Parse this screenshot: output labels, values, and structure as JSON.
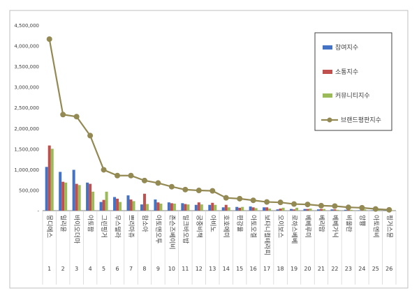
{
  "chart_data": {
    "type": "bar",
    "categories": [
      "몽디에스",
      "일리윤",
      "바이오더마",
      "아토팜",
      "그린핑거",
      "무스텔라",
      "쁘리마쥬",
      "함소아",
      "아토앤오투",
      "존슨즈베이비",
      "밀크바오밥",
      "궁중비책",
      "아비노",
      "호호에미",
      "편강율",
      "아토오겔",
      "보타니컬테라피",
      "오이보스",
      "로하스베베",
      "베베루미",
      "베리맘",
      "베베가닉",
      "비올란",
      "앙쁑",
      "아토엔비",
      "핑거스뮨"
    ],
    "x_numbers": [
      "1",
      "2",
      "3",
      "4",
      "5",
      "6",
      "7",
      "8",
      "9",
      "10",
      "11",
      "12",
      "13",
      "14",
      "15",
      "16",
      "17",
      "18",
      "19",
      "20",
      "21",
      "22",
      "23",
      "24",
      "25",
      "26"
    ],
    "yticks": [
      "-",
      "500,000",
      "1,000,000",
      "1,500,000",
      "2,000,000",
      "2,500,000",
      "3,000,000",
      "3,500,000",
      "4,000,000",
      "4,500,000"
    ],
    "ylim": [
      0,
      4500000
    ],
    "series": [
      {
        "name": "참여지수",
        "type": "bar",
        "color": "#4472C4",
        "values": [
          1060000,
          940000,
          990000,
          680000,
          210000,
          330000,
          370000,
          150000,
          270000,
          200000,
          180000,
          140000,
          140000,
          80000,
          90000,
          100000,
          80000,
          30000,
          40000,
          40000,
          30000,
          30000,
          20000,
          10000,
          10000,
          10000
        ]
      },
      {
        "name": "소통지수",
        "type": "bar",
        "color": "#C0504D",
        "values": [
          1580000,
          700000,
          650000,
          650000,
          260000,
          290000,
          270000,
          410000,
          200000,
          180000,
          160000,
          200000,
          190000,
          140000,
          70000,
          80000,
          80000,
          50000,
          30000,
          40000,
          40000,
          30000,
          20000,
          20000,
          10000,
          10000
        ]
      },
      {
        "name": "커뮤니티지수",
        "type": "bar",
        "color": "#9BBB59",
        "values": [
          1500000,
          680000,
          620000,
          460000,
          460000,
          210000,
          230000,
          160000,
          170000,
          170000,
          150000,
          150000,
          140000,
          80000,
          90000,
          60000,
          50000,
          70000,
          70000,
          50000,
          40000,
          20000,
          20000,
          30000,
          20000,
          10000
        ]
      },
      {
        "name": "브랜드평판지수",
        "type": "line",
        "color": "#938953",
        "values": [
          4160000,
          2330000,
          2280000,
          1820000,
          990000,
          850000,
          850000,
          730000,
          670000,
          580000,
          510000,
          490000,
          480000,
          310000,
          290000,
          250000,
          210000,
          200000,
          160000,
          150000,
          120000,
          110000,
          80000,
          70000,
          40000,
          20000
        ]
      }
    ],
    "legend_position": "right",
    "grid": false
  }
}
